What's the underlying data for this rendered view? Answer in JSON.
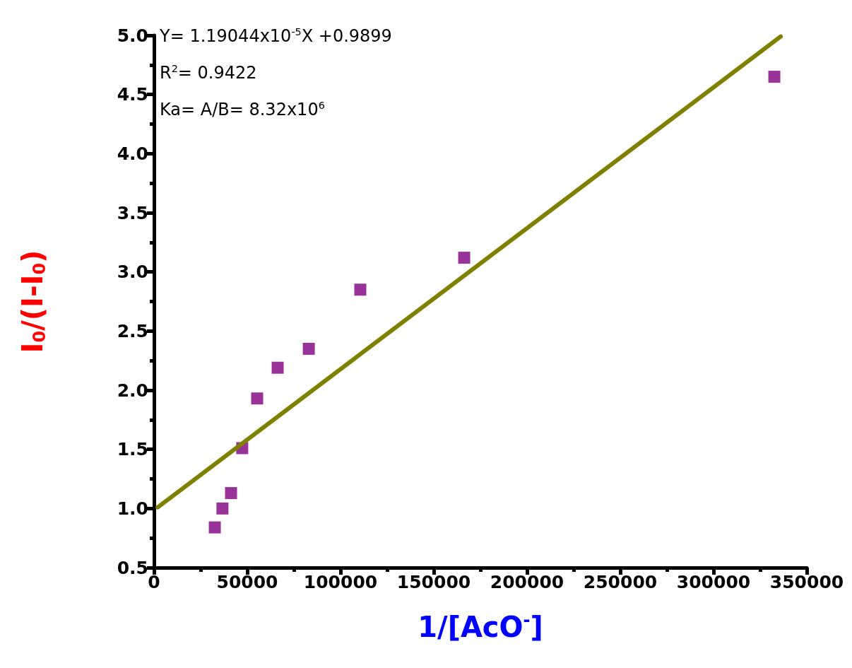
{
  "chart_data": {
    "type": "scatter",
    "xlabel": "1/[AcO$^{-}$]",
    "ylabel": "I$_{0}$/(I-I$_{0}$)",
    "annotations": [
      "Y= 1.19044x10$^{-5}$X +0.9899",
      "R$^{2}$= 0.9422",
      "Ka= A/B= 8.32x10$^{6}$"
    ],
    "x": [
      32600,
      36700,
      41300,
      47300,
      55300,
      66300,
      83000,
      110600,
      166300,
      332600
    ],
    "series": [
      {
        "color": "#800080",
        "marker": "square",
        "values": [
          0.84,
          1.0,
          1.13,
          1.51,
          1.93,
          2.19,
          2.35,
          2.85,
          3.12,
          4.65
        ]
      },
      {
        "type": "line",
        "color": "#808000",
        "marker": "none",
        "line_style": "solid",
        "x": [
          2000,
          336000
        ],
        "values": [
          1.01,
          4.99
        ]
      }
    ],
    "xlim": [
      0,
      350000
    ],
    "xticks": [
      0,
      50000,
      100000,
      150000,
      200000,
      250000,
      300000,
      350000
    ],
    "ylim": [
      0.5,
      5.0
    ],
    "yticks": [
      0.5,
      {
        "value": 1,
        "label": "1.0"
      },
      1.5,
      {
        "value": 2,
        "label": "2.0"
      },
      2.5,
      {
        "value": 3,
        "label": "3.0"
      },
      3.5,
      {
        "value": 4,
        "label": "4.0"
      },
      4.5,
      {
        "value": 5,
        "label": "5.0"
      }
    ],
    "grid": false
  }
}
